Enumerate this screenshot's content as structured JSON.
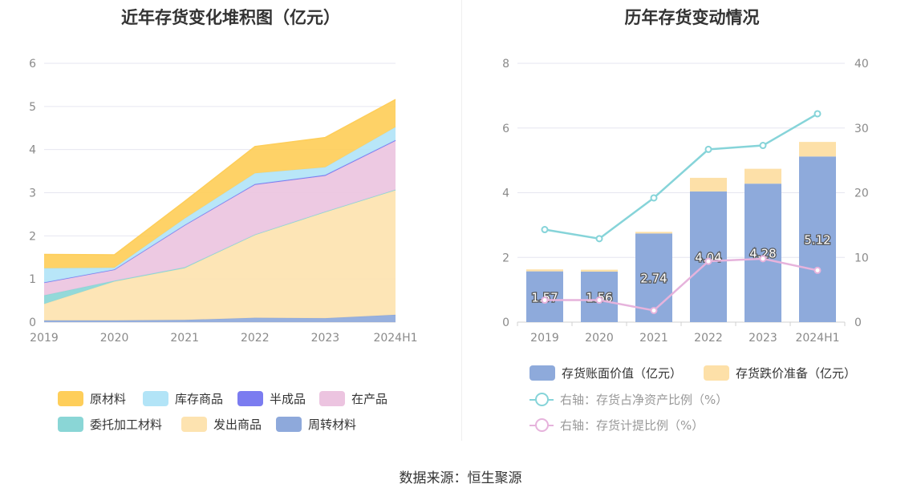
{
  "source_text": "数据来源：恒生聚源",
  "chart_data": [
    {
      "type": "area",
      "title": "近年存货变化堆积图（亿元）",
      "categories": [
        "2019",
        "2020",
        "2021",
        "2022",
        "2023",
        "2024H1"
      ],
      "ylim": [
        0,
        6
      ],
      "yticks": [
        0,
        1,
        2,
        3,
        4,
        5,
        6
      ],
      "stacked": true,
      "grid": true,
      "legend_position": "bottom",
      "series": [
        {
          "name": "周转材料",
          "color": "#8ea9db",
          "values": [
            0.04,
            0.04,
            0.05,
            0.1,
            0.09,
            0.17
          ]
        },
        {
          "name": "发出商品",
          "color": "#fde3b0",
          "values": [
            0.38,
            0.9,
            1.2,
            1.93,
            2.47,
            2.9
          ]
        },
        {
          "name": "委托加工材料",
          "color": "#8ad6d6",
          "values": [
            0.2,
            0.02,
            0.02,
            0.0,
            0.0,
            0.0
          ]
        },
        {
          "name": "在产品",
          "color": "#ecc4e0",
          "values": [
            0.3,
            0.26,
            0.98,
            1.15,
            0.83,
            1.13
          ]
        },
        {
          "name": "半成品",
          "color": "#7b7cf0",
          "values": [
            0.0,
            0.0,
            0.0,
            0.02,
            0.02,
            0.02
          ]
        },
        {
          "name": "库存商品",
          "color": "#b2e4f7",
          "values": [
            0.33,
            0.04,
            0.15,
            0.25,
            0.18,
            0.3
          ]
        },
        {
          "name": "原材料",
          "color": "#fece5a",
          "values": [
            0.32,
            0.3,
            0.4,
            0.62,
            0.69,
            0.64
          ]
        }
      ],
      "legend_order": [
        "原材料",
        "库存商品",
        "半成品",
        "在产品",
        "委托加工材料",
        "发出商品",
        "周转材料"
      ]
    },
    {
      "type": "bar",
      "title": "历年存货变动情况",
      "categories": [
        "2019",
        "2020",
        "2021",
        "2022",
        "2023",
        "2024H1"
      ],
      "ylim": [
        0,
        8
      ],
      "yticks": [
        0,
        2,
        4,
        6,
        8
      ],
      "y2lim": [
        0,
        40
      ],
      "y2ticks": [
        0,
        10,
        20,
        30,
        40
      ],
      "stacked": true,
      "grid": true,
      "legend_position": "bottom",
      "series": [
        {
          "name": "存货账面价值（亿元）",
          "type": "bar",
          "color": "#8eaadb",
          "values": [
            1.57,
            1.56,
            2.74,
            4.04,
            4.28,
            5.12
          ],
          "labels": [
            "1.57",
            "1.56",
            "2.74",
            "4.04",
            "4.28",
            "5.12"
          ]
        },
        {
          "name": "存货跌价准备（亿元）",
          "type": "bar",
          "color": "#fde0a8",
          "values": [
            0.06,
            0.06,
            0.05,
            0.42,
            0.46,
            0.45
          ]
        },
        {
          "name": "右轴：存货占净资产比例（%）",
          "type": "line",
          "axis": "right",
          "color": "#86d4d9",
          "values": [
            14.3,
            12.9,
            19.2,
            26.7,
            27.3,
            32.2
          ]
        },
        {
          "name": "右轴：存货计提比例（%）",
          "type": "line",
          "axis": "right",
          "color": "#e6b3dc",
          "values": [
            3.4,
            3.4,
            1.8,
            9.4,
            9.8,
            8.0
          ]
        }
      ]
    }
  ]
}
